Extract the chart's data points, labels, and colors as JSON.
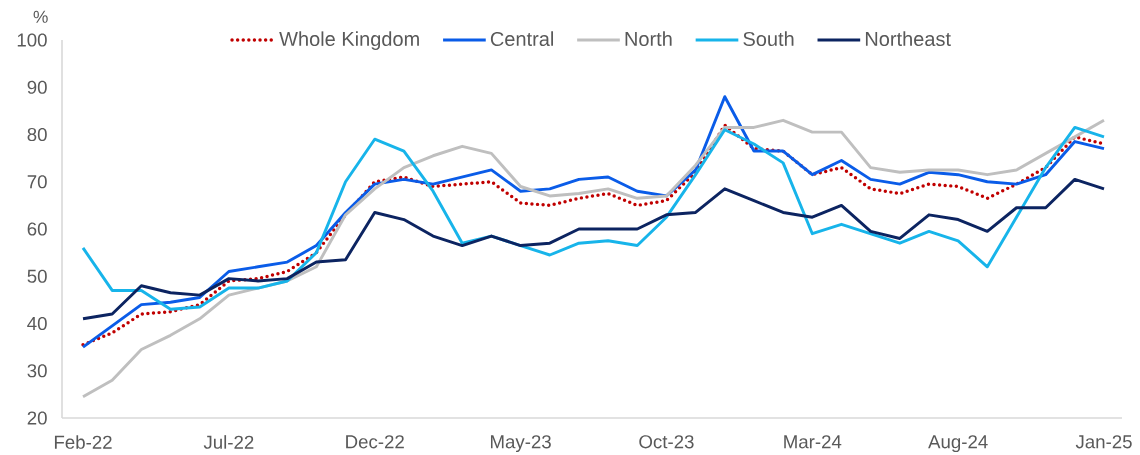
{
  "chart_data": {
    "type": "line",
    "ylabel": "%",
    "categories": [
      "Feb-22",
      null,
      null,
      null,
      null,
      "Jul-22",
      null,
      null,
      null,
      null,
      "Dec-22",
      null,
      null,
      null,
      null,
      "May-23",
      null,
      null,
      null,
      null,
      "Oct-23",
      null,
      null,
      null,
      null,
      "Mar-24",
      null,
      null,
      null,
      null,
      "Aug-24",
      null,
      null,
      null,
      null,
      "Jan-25"
    ],
    "series": [
      {
        "name": "Whole Kingdom",
        "color": "#c00000",
        "line_style": "dotted",
        "values": [
          35.5,
          38,
          42,
          42.5,
          44,
          49,
          49.5,
          51,
          55,
          63,
          70,
          71,
          69,
          69.5,
          70,
          65.5,
          65,
          66.5,
          67.5,
          65,
          66,
          72,
          82,
          77,
          76.5,
          71.5,
          73,
          68.5,
          67.5,
          69.5,
          69,
          66.5,
          69.5,
          73,
          79.5,
          78
        ]
      },
      {
        "name": "Central",
        "color": "#0a5ce8",
        "line_style": "solid",
        "values": [
          35,
          39.5,
          44,
          44.5,
          45.5,
          51,
          52,
          53,
          56.5,
          63.5,
          69.5,
          70.5,
          69.5,
          71,
          72.5,
          68,
          68.5,
          70.5,
          71,
          68,
          67,
          72.5,
          88,
          76.5,
          76.5,
          71.5,
          74.5,
          70.5,
          69.5,
          72,
          71.5,
          70,
          69.5,
          71.5,
          78.5,
          77
        ]
      },
      {
        "name": "North",
        "color": "#bfbfbf",
        "line_style": "solid",
        "values": [
          24.5,
          28,
          34.5,
          37.5,
          41,
          46,
          47.5,
          49,
          52,
          63,
          68.5,
          73,
          75.5,
          77.5,
          76,
          69,
          67,
          67.5,
          68.5,
          66.5,
          67,
          73.5,
          81.5,
          81.5,
          83,
          80.5,
          80.5,
          73,
          72,
          72.5,
          72.5,
          71.5,
          72.5,
          76,
          79.5,
          83
        ]
      },
      {
        "name": "South",
        "color": "#17b4ea",
        "line_style": "solid",
        "values": [
          56,
          47,
          47,
          43,
          43.5,
          47.5,
          47.5,
          49,
          55,
          70,
          79,
          76.5,
          68,
          57,
          58.5,
          56.5,
          54.5,
          57,
          57.5,
          56.5,
          62.5,
          71.5,
          81,
          78,
          74,
          59,
          61,
          59,
          57,
          59.5,
          57.5,
          52,
          62.5,
          73,
          81.5,
          79.5
        ]
      },
      {
        "name": "Northeast",
        "color": "#0c2461",
        "line_style": "solid",
        "values": [
          41,
          42,
          48,
          46.5,
          46,
          49.5,
          49,
          49.5,
          53,
          53.5,
          63.5,
          62,
          58.5,
          56.5,
          58.5,
          56.5,
          57,
          60,
          60,
          60,
          63,
          63.5,
          68.5,
          66,
          63.5,
          62.5,
          65,
          59.5,
          58,
          63,
          62,
          59.5,
          64.5,
          64.5,
          70.5,
          68.5
        ]
      }
    ],
    "ylim": [
      20,
      100
    ],
    "yticks": [
      20,
      30,
      40,
      50,
      60,
      70,
      80,
      90,
      100
    ],
    "grid": false,
    "legend": "top"
  }
}
